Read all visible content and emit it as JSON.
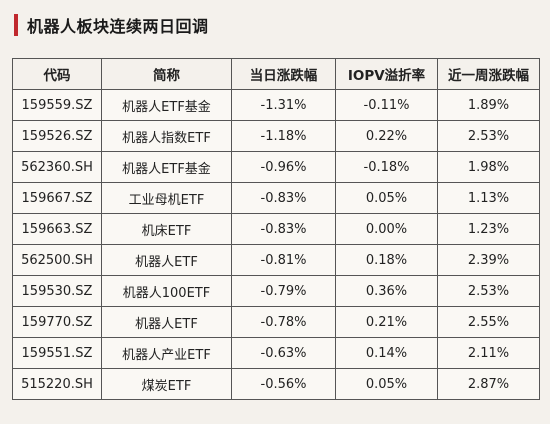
{
  "title": "机器人板块连续两日回调",
  "accent_color": "#c0282d",
  "table": {
    "headers": [
      "代码",
      "简称",
      "当日涨跌幅",
      "IOPV溢折率",
      "近一周涨跌幅"
    ],
    "rows": [
      [
        "159559.SZ",
        "机器人ETF基金",
        "-1.31%",
        "-0.11%",
        "1.89%"
      ],
      [
        "159526.SZ",
        "机器人指数ETF",
        "-1.18%",
        "0.22%",
        "2.53%"
      ],
      [
        "562360.SH",
        "机器人ETF基金",
        "-0.96%",
        "-0.18%",
        "1.98%"
      ],
      [
        "159667.SZ",
        "工业母机ETF",
        "-0.83%",
        "0.05%",
        "1.13%"
      ],
      [
        "159663.SZ",
        "机床ETF",
        "-0.83%",
        "0.00%",
        "1.23%"
      ],
      [
        "562500.SH",
        "机器人ETF",
        "-0.81%",
        "0.18%",
        "2.39%"
      ],
      [
        "159530.SZ",
        "机器人100ETF",
        "-0.79%",
        "0.36%",
        "2.53%"
      ],
      [
        "159770.SZ",
        "机器人ETF",
        "-0.78%",
        "0.21%",
        "2.55%"
      ],
      [
        "159551.SZ",
        "机器人产业ETF",
        "-0.63%",
        "0.14%",
        "2.11%"
      ],
      [
        "515220.SH",
        "煤炭ETF",
        "-0.56%",
        "0.05%",
        "2.87%"
      ]
    ]
  }
}
